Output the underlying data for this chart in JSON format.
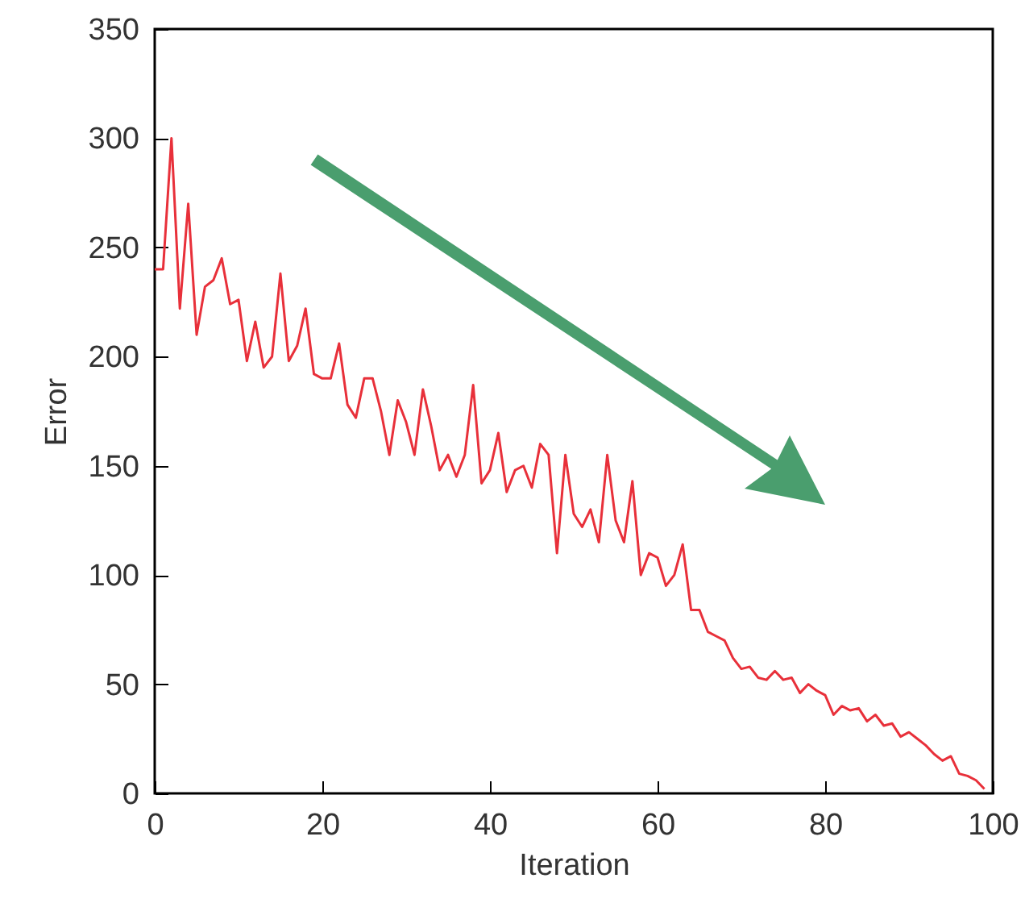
{
  "chart_data": {
    "type": "line",
    "xlabel": "Iteration",
    "ylabel": "Error",
    "x": [
      0,
      1,
      2,
      3,
      4,
      5,
      6,
      7,
      8,
      9,
      10,
      11,
      12,
      13,
      14,
      15,
      16,
      17,
      18,
      19,
      20,
      21,
      22,
      23,
      24,
      25,
      26,
      27,
      28,
      29,
      30,
      31,
      32,
      33,
      34,
      35,
      36,
      37,
      38,
      39,
      40,
      41,
      42,
      43,
      44,
      45,
      46,
      47,
      48,
      49,
      50,
      51,
      52,
      53,
      54,
      55,
      56,
      57,
      58,
      59,
      60,
      61,
      62,
      63,
      64,
      65,
      66,
      67,
      68,
      69,
      70,
      71,
      72,
      73,
      74,
      75,
      76,
      77,
      78,
      79,
      80,
      81,
      82,
      83,
      84,
      85,
      86,
      87,
      88,
      89,
      90,
      91,
      92,
      93,
      94,
      95,
      96,
      97,
      98,
      99
    ],
    "series": [
      {
        "color": "#e8303a",
        "values": [
          240,
          240,
          300,
          222,
          270,
          210,
          232,
          235,
          245,
          224,
          226,
          198,
          216,
          195,
          200,
          238,
          198,
          205,
          222,
          192,
          190,
          190,
          206,
          178,
          172,
          190,
          190,
          175,
          155,
          180,
          170,
          155,
          185,
          168,
          148,
          155,
          145,
          155,
          187,
          142,
          148,
          165,
          138,
          148,
          150,
          140,
          160,
          155,
          110,
          155,
          128,
          122,
          130,
          115,
          155,
          125,
          115,
          143,
          100,
          110,
          108,
          95,
          100,
          114,
          84,
          84,
          74,
          72,
          70,
          62,
          57,
          58,
          53,
          52,
          56,
          52,
          53,
          46,
          50,
          47,
          45,
          36,
          40,
          38,
          39,
          33,
          36,
          31,
          32,
          26,
          28,
          25,
          22,
          18,
          15,
          17,
          9,
          8,
          6,
          2
        ]
      }
    ],
    "xlim": [
      0,
      100
    ],
    "ylim": [
      0,
      350
    ],
    "xticks": [
      0,
      20,
      40,
      60,
      80,
      100
    ],
    "yticks": [
      0,
      50,
      100,
      150,
      200,
      250,
      300,
      350
    ],
    "grid": false,
    "marker": "none",
    "line_style": "solid"
  }
}
